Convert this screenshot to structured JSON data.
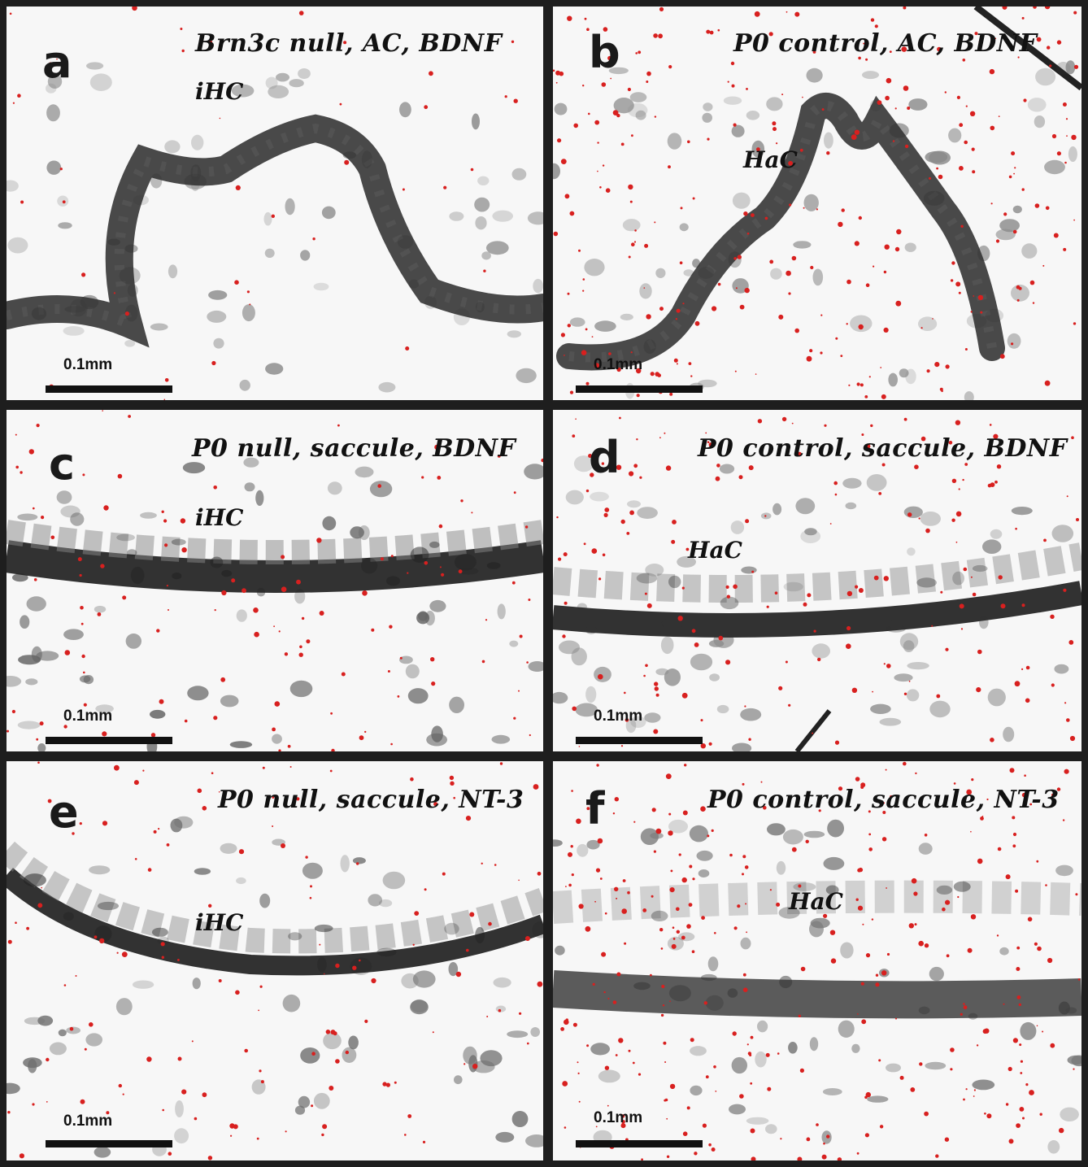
{
  "panels": [
    {
      "letter": "a",
      "title": "Brn3c null, AC, BDNF",
      "cell_label": "iHC",
      "scale": "0.1mm"
    },
    {
      "letter": "b",
      "title": "P0 control, AC, BDNF",
      "cell_label": "HaC",
      "scale": "0.1mm"
    },
    {
      "letter": "c",
      "title": "P0 null, saccule, BDNF",
      "cell_label": "iHC",
      "scale": "0.1mm"
    },
    {
      "letter": "d",
      "title": "P0 control, saccule, BDNF",
      "cell_label": "HaC",
      "scale": "0.1mm"
    },
    {
      "letter": "e",
      "title": "P0 null, saccule, NT-3",
      "cell_label": "iHC",
      "scale": "0.1mm"
    },
    {
      "letter": "f",
      "title": "P0 control, saccule, NT-3",
      "cell_label": "HaC",
      "scale": "0.1mm"
    }
  ],
  "colors": {
    "stain": "#d8201f",
    "nuclei": "#1c1c1c",
    "background": "#f7f7f7",
    "divider": "#1e1e1e"
  }
}
